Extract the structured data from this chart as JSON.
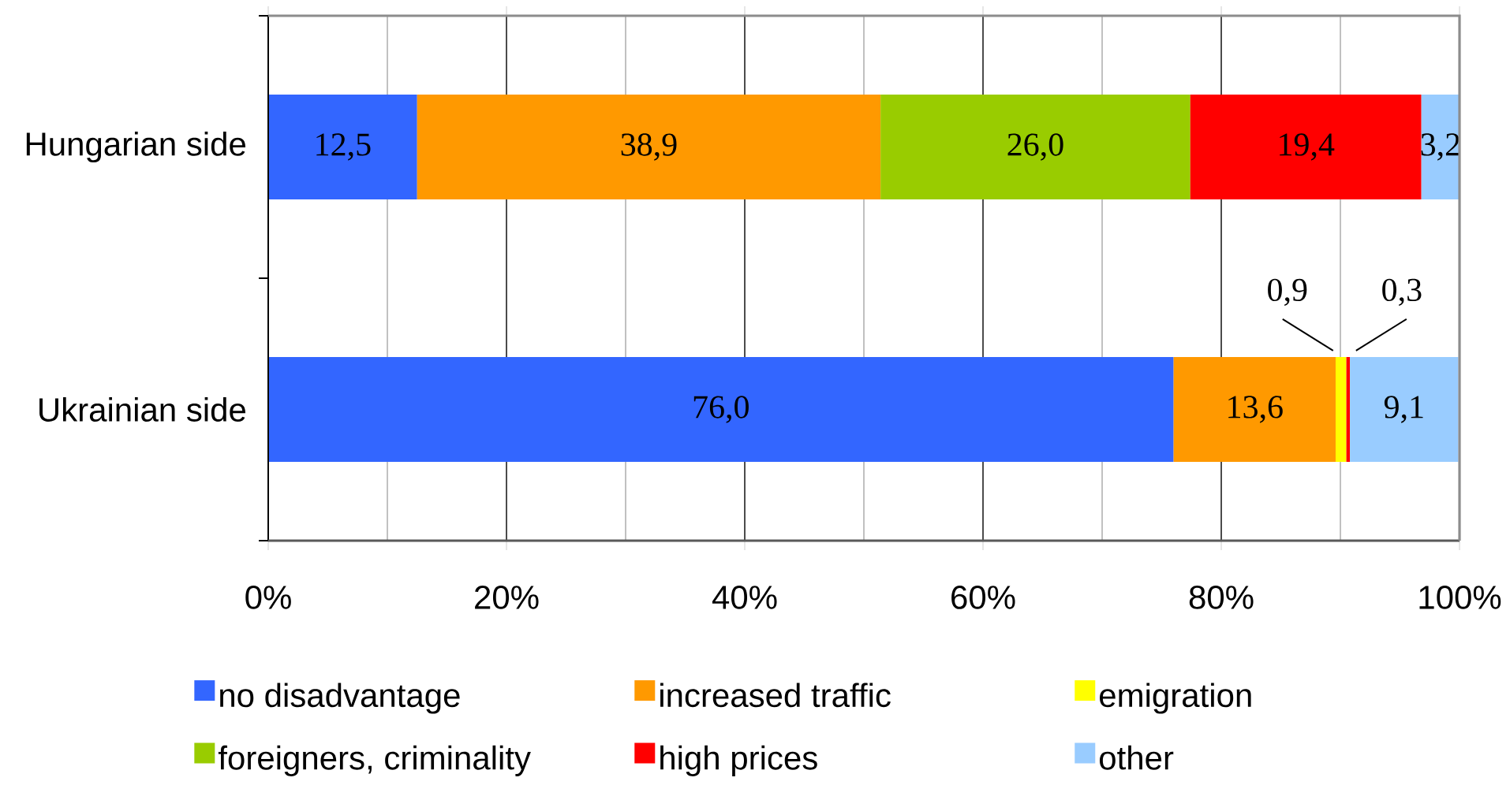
{
  "chart_data": {
    "type": "bar",
    "orientation": "horizontal",
    "stacked": true,
    "categories": [
      "Hungarian side",
      "Ukrainian side"
    ],
    "series": [
      {
        "name": "no disadvantage",
        "color": "#3366ff",
        "values": [
          12.5,
          76.0
        ],
        "value_labels": [
          "12,5",
          "76,0"
        ]
      },
      {
        "name": "increased traffic",
        "color": "#ff9900",
        "values": [
          38.9,
          13.6
        ],
        "value_labels": [
          "38,9",
          "13,6"
        ]
      },
      {
        "name": "emigration",
        "color": "#ffff00",
        "values": [
          null,
          0.9
        ],
        "value_labels": [
          null,
          "0,9"
        ]
      },
      {
        "name": "foreigners, criminality",
        "color": "#99cc00",
        "values": [
          26.0,
          null
        ],
        "value_labels": [
          "26,0",
          null
        ]
      },
      {
        "name": "high prices",
        "color": "#ff0000",
        "values": [
          19.4,
          0.3
        ],
        "value_labels": [
          "19,4",
          "0,3"
        ]
      },
      {
        "name": "other",
        "color": "#99ccff",
        "values": [
          3.2,
          9.1
        ],
        "value_labels": [
          "3,2",
          "9,1"
        ]
      }
    ],
    "xlim": [
      0,
      100
    ],
    "xticks": [
      {
        "value": 0,
        "label": "0%"
      },
      {
        "value": 10,
        "label": null
      },
      {
        "value": 20,
        "label": "20%"
      },
      {
        "value": 30,
        "label": null
      },
      {
        "value": 40,
        "label": "40%"
      },
      {
        "value": 50,
        "label": null
      },
      {
        "value": 60,
        "label": "60%"
      },
      {
        "value": 70,
        "label": null
      },
      {
        "value": 80,
        "label": "80%"
      },
      {
        "value": 90,
        "label": null
      },
      {
        "value": 100,
        "label": "100%"
      }
    ],
    "grid": "x",
    "legend": "bottom"
  }
}
